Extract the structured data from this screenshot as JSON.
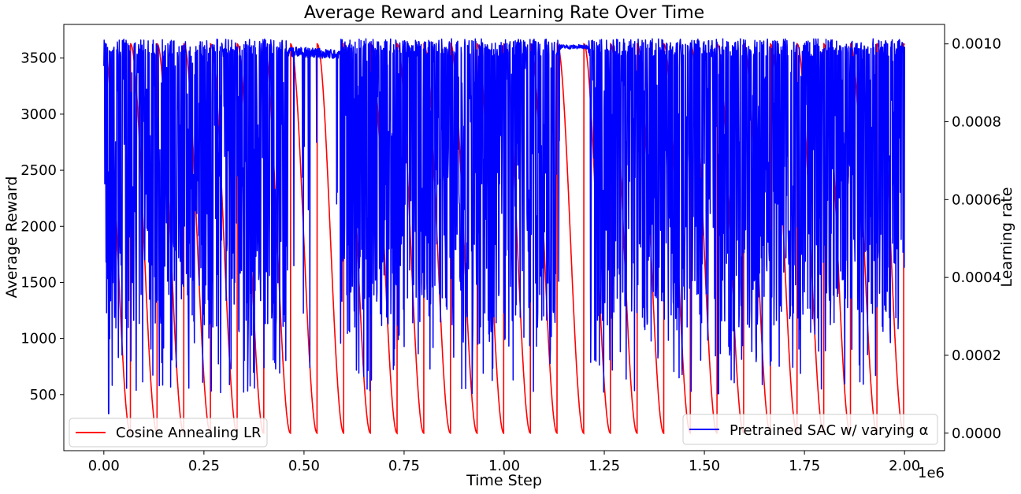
{
  "chart_data": {
    "type": "line",
    "title": "Average Reward and Learning Rate Over Time",
    "xlabel": "Time Step",
    "x_offset_label": "1e6",
    "ylabel_left": "Average Reward",
    "ylabel_right": "Learning rate",
    "xlim": [
      -100000,
      2100000
    ],
    "ylim_left": [
      0,
      3800
    ],
    "ylim_right": [
      -4.5e-05,
      0.00105
    ],
    "x_ticks": [
      0,
      250000,
      500000,
      750000,
      1000000,
      1250000,
      1500000,
      1750000,
      2000000
    ],
    "x_tick_labels": [
      "0.00",
      "0.25",
      "0.50",
      "0.75",
      "1.00",
      "1.25",
      "1.50",
      "1.75",
      "2.00"
    ],
    "y_left_ticks": [
      500,
      1000,
      1500,
      2000,
      2500,
      3000,
      3500
    ],
    "y_left_tick_labels": [
      "500",
      "1000",
      "1500",
      "2000",
      "2500",
      "3000",
      "3500"
    ],
    "y_right_ticks": [
      0,
      0.0002,
      0.0004,
      0.0006,
      0.0008,
      0.001
    ],
    "y_right_tick_labels": [
      "0.0000",
      "0.0002",
      "0.0004",
      "0.0006",
      "0.0008",
      "0.0010"
    ],
    "grid": false,
    "series": [
      {
        "name": "Pretrained SAC w/ varying α",
        "axis": "left",
        "color": "#0000ff",
        "x_range": [
          0,
          2000000
        ],
        "baseline": 3560,
        "first_point": [
          0,
          3430
        ],
        "early_minimum": [
          12000,
          330
        ],
        "stable_segment": [
          [
            460000,
            3560
          ],
          [
            590000,
            3530
          ],
          [
            1140000,
            3600
          ],
          [
            1210000,
            3600
          ]
        ],
        "range_observed": [
          200,
          3700
        ],
        "final_point": [
          2000000,
          3600
        ]
      },
      {
        "name": "Cosine Annealing LR",
        "axis": "right",
        "color": "#ff0000",
        "schedule": "cosine_with_restarts",
        "lr_max": 0.001,
        "lr_min": 0.0,
        "restart_period": 66600,
        "x_range": [
          0,
          2000000
        ]
      }
    ],
    "legends": [
      {
        "placement": "lower-left",
        "entries": [
          "Cosine Annealing LR"
        ]
      },
      {
        "placement": "lower-right",
        "entries": [
          "Pretrained SAC w/ varying α"
        ]
      }
    ]
  }
}
